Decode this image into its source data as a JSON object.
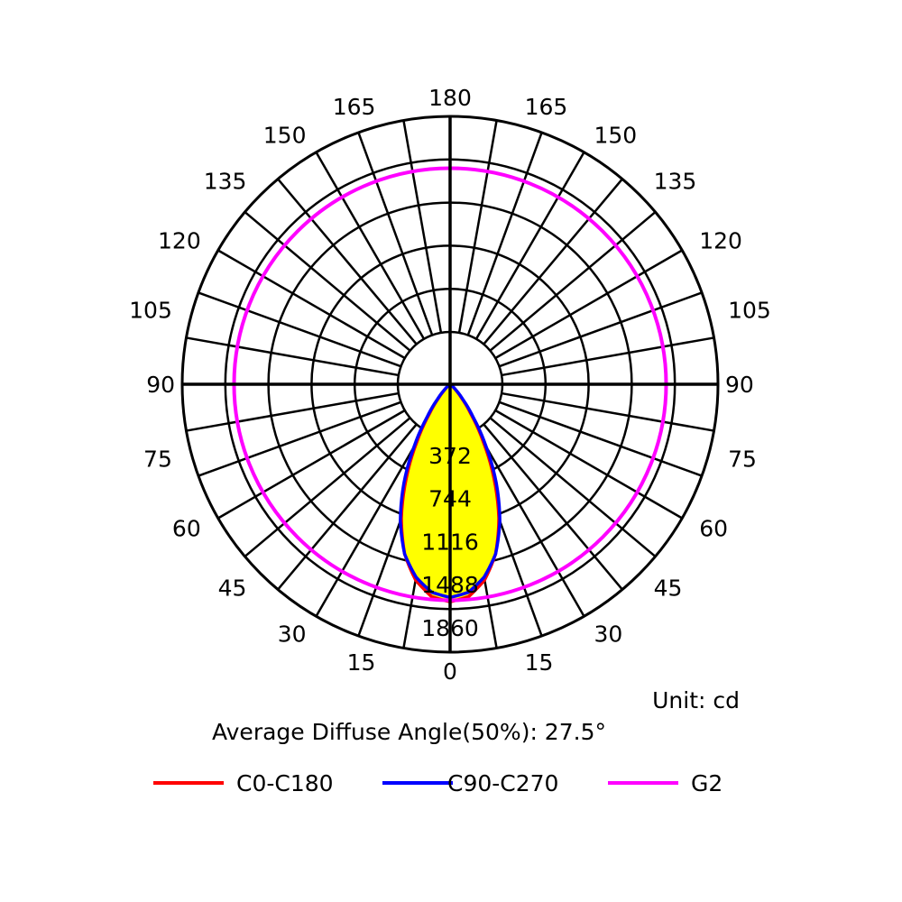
{
  "chart_data": {
    "type": "polar",
    "unit_text": "Unit: cd",
    "info_text": "Average Diffuse Angle(50%): 27.5°",
    "ring_labels": [
      "372",
      "744",
      "1116",
      "1488",
      "1860"
    ],
    "ring_values": [
      372,
      744,
      1116,
      1488,
      1860
    ],
    "r_max": 1860,
    "angle_ticks": [
      "0",
      "15",
      "30",
      "45",
      "60",
      "75",
      "90",
      "105",
      "120",
      "135",
      "150",
      "165",
      "180"
    ],
    "angles_deg": [
      0,
      15,
      30,
      45,
      60,
      75,
      90,
      105,
      120,
      135,
      150,
      165,
      180
    ],
    "spoke_step_deg": 10,
    "series": [
      {
        "name": "C0-C180",
        "color": "#ff0000",
        "angles": [
          0,
          5,
          10,
          15,
          20,
          25,
          30,
          35,
          40,
          45,
          50,
          60,
          70,
          80,
          90
        ],
        "values": [
          1510,
          1480,
          1380,
          1220,
          990,
          720,
          460,
          250,
          120,
          50,
          15,
          3,
          0,
          0,
          0
        ]
      },
      {
        "name": "C90-C270",
        "color": "#0000ff",
        "angles": [
          0,
          5,
          10,
          15,
          20,
          25,
          30,
          35,
          40,
          45,
          50,
          60,
          70,
          80,
          90
        ],
        "values": [
          1480,
          1450,
          1360,
          1220,
          1010,
          760,
          500,
          280,
          140,
          60,
          20,
          4,
          0,
          0,
          0
        ]
      },
      {
        "name": "G2",
        "color": "#ff00ff",
        "angles": [
          0,
          30,
          60,
          90,
          120,
          150,
          180
        ],
        "values": [
          1500,
          1500,
          1500,
          1500,
          1500,
          1500,
          1500
        ]
      }
    ],
    "fill_color": "#ffff00",
    "grid_color": "#000000"
  },
  "legend": {
    "items": [
      {
        "label": "C0-C180",
        "color": "#ff0000"
      },
      {
        "label": "C90-C270",
        "color": "#0000ff"
      },
      {
        "label": "G2",
        "color": "#ff00ff"
      }
    ]
  }
}
